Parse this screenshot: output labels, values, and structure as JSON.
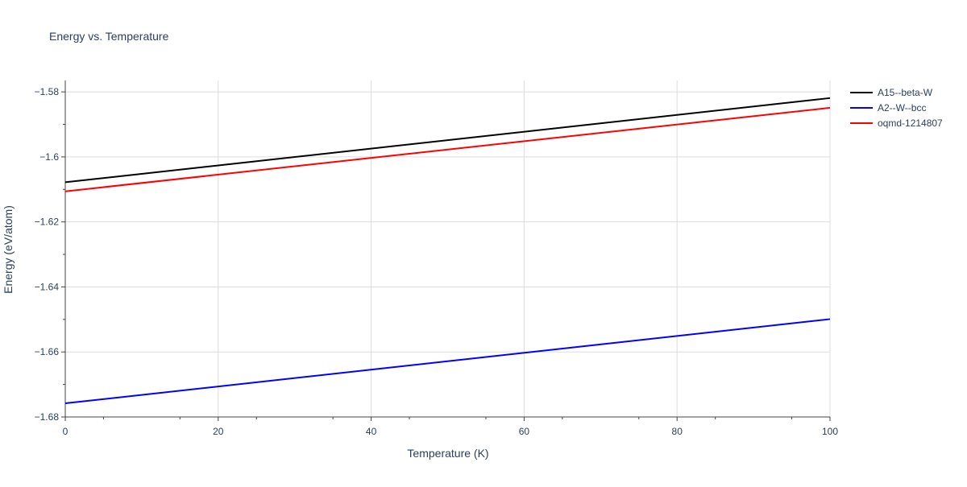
{
  "chart_data": {
    "type": "line",
    "title": "Energy vs. Temperature",
    "xlabel": "Temperature (K)",
    "ylabel": "Energy (eV/atom)",
    "xlim": [
      0,
      100
    ],
    "ylim": [
      -1.68,
      -1.5765
    ],
    "x_ticks": [
      0,
      20,
      40,
      60,
      80,
      100
    ],
    "x_tick_labels": [
      "0",
      "20",
      "40",
      "60",
      "80",
      "100"
    ],
    "y_ticks": [
      -1.68,
      -1.66,
      -1.64,
      -1.62,
      -1.6,
      -1.58
    ],
    "y_tick_labels": [
      "−1.68",
      "−1.66",
      "−1.64",
      "−1.62",
      "−1.6",
      "−1.58"
    ],
    "grid": true,
    "legend_position": "top-right",
    "series": [
      {
        "name": "A15--beta-W",
        "color": "#000000",
        "x": [
          0,
          100
        ],
        "y": [
          -1.6078,
          -1.5819
        ]
      },
      {
        "name": "A2--W--bcc",
        "color": "#0000ff",
        "x": [
          0,
          100
        ],
        "y": [
          -1.6758,
          -1.6499
        ]
      },
      {
        "name": "oqmd-1214807",
        "color": "#ff0000",
        "x": [
          0,
          100
        ],
        "y": [
          -1.6106,
          -1.5849
        ]
      }
    ]
  }
}
